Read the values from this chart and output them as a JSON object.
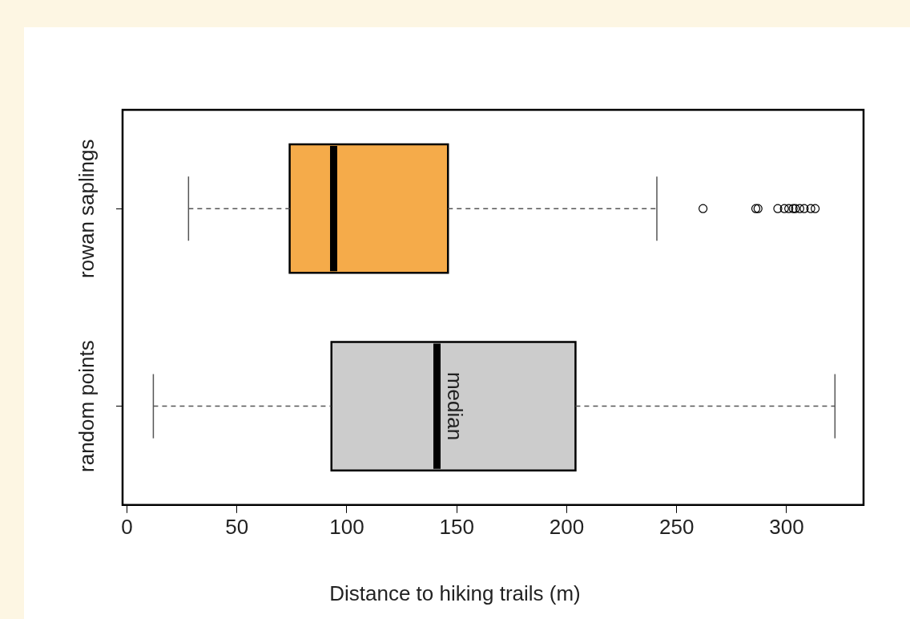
{
  "chart_data": {
    "type": "box",
    "orientation": "horizontal",
    "xlabel": "Distance to hiking trails (m)",
    "categories": [
      "rowan saplings",
      "random points"
    ],
    "colors": [
      "#f5ab4a",
      "#cccccc"
    ],
    "boxes": [
      {
        "low": 28,
        "q1": 74,
        "median": 94,
        "q3": 146,
        "high": 241,
        "outliers": [
          262,
          286,
          287,
          296,
          299,
          301,
          303,
          304,
          306,
          308,
          311,
          313
        ]
      },
      {
        "low": 12,
        "q1": 93,
        "median": 141,
        "q3": 204,
        "high": 322
      }
    ],
    "xlim": [
      -2,
      335
    ],
    "xticks": [
      0,
      50,
      100,
      150,
      200,
      250,
      300
    ],
    "annotations": [
      "median"
    ]
  }
}
